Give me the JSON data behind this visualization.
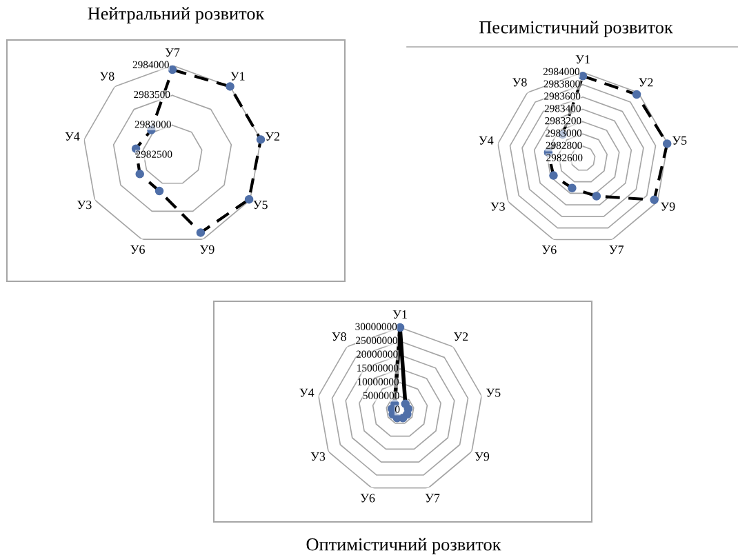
{
  "chart_data": [
    {
      "type": "radar",
      "title": "Нейтральний розвиток",
      "categories": [
        "У7",
        "У1",
        "У2",
        "У5",
        "У9",
        "У6",
        "У3",
        "У4",
        "У8"
      ],
      "ylim": [
        2982500,
        2984000
      ],
      "yticks": [
        2982500,
        2983000,
        2983500,
        2984000
      ],
      "marker": "circle",
      "line_style": "dashed",
      "series": [
        {
          "color": "#000000",
          "colors": [
            "#4f6fa8",
            "#4f6fa8",
            "#4f6fa8",
            "#4f6fa8",
            "#4f6fa8",
            "#4f6fa8",
            "#4f6fa8",
            "#4f6fa8",
            "#4f6fa8"
          ],
          "values": [
            2983930,
            2984000,
            2984000,
            2983980,
            2983880,
            2983140,
            2983130,
            2983120,
            2983050
          ]
        }
      ]
    },
    {
      "type": "radar",
      "title": "Песимістичний розвиток",
      "categories": [
        "У1",
        "У2",
        "У5",
        "У9",
        "У7",
        "У6",
        "У3",
        "У4",
        "У8"
      ],
      "ylim": [
        2982600,
        2984000
      ],
      "yticks": [
        2982600,
        2982800,
        2983000,
        2983200,
        2983400,
        2983600,
        2983800,
        2984000
      ],
      "marker": "circle",
      "line_style": "dashed",
      "series": [
        {
          "color": "#000000",
          "colors": [
            "#4f6fa8",
            "#4f6fa8",
            "#4f6fa8",
            "#4f6fa8",
            "#4f6fa8",
            "#4f6fa8",
            "#4f6fa8",
            "#4f6fa8",
            "#4f6fa8"
          ],
          "values": [
            2983940,
            2983960,
            2983990,
            2983940,
            2983250,
            2983110,
            2983150,
            2983170,
            2983110
          ]
        }
      ]
    },
    {
      "type": "radar",
      "title": "Оптимістичний розвиток",
      "categories": [
        "У1",
        "У2",
        "У5",
        "У9",
        "У7",
        "У6",
        "У3",
        "У4",
        "У8"
      ],
      "ylim": [
        0,
        30000000
      ],
      "yticks": [
        0,
        5000000,
        10000000,
        15000000,
        20000000,
        25000000,
        30000000
      ],
      "marker": "circle",
      "line_style": "solid",
      "series": [
        {
          "color": "#000000",
          "colors": [
            "#4f6fa8",
            "#4f6fa8",
            "#4f6fa8",
            "#4f6fa8",
            "#4f6fa8",
            "#4f6fa8",
            "#4f6fa8",
            "#4f6fa8",
            "#4f6fa8"
          ],
          "values": [
            30000000,
            3000000,
            3000000,
            3000000,
            3000000,
            3000000,
            3000000,
            3000000,
            3000000
          ]
        }
      ]
    }
  ]
}
